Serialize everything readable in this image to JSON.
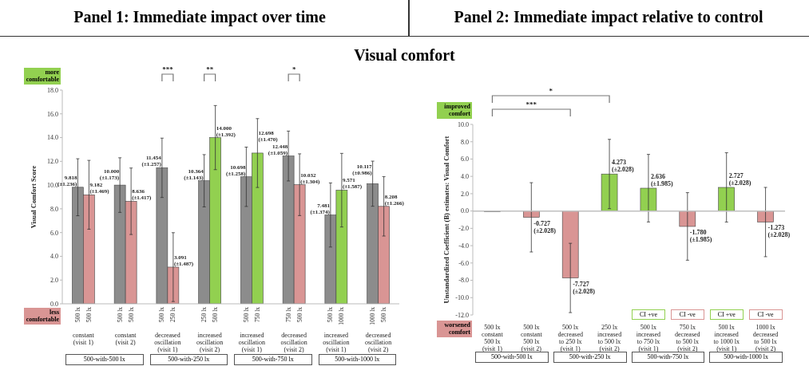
{
  "chart_data": [
    {
      "type": "bar",
      "title": "Panel 1: Immediate impact over time",
      "subtitle": "Visual comfort",
      "ylabel": "Visual Comfort Score",
      "categories": [
        "constant\n(visit 1)",
        "constant\n(visit 2)",
        "decreased\noscillation\n(visit 1)",
        "increased\noscillation\n(visit 2)",
        "increased\noscillation\n(visit 1)",
        "decreased\noscillation\n(visit 2)",
        "increased\noscillation\n(visit 1)",
        "decreased\noscillation\n(visit 2)"
      ],
      "series": [
        {
          "values": [
            9.818,
            10.0,
            11.454,
            10.364,
            10.698,
            12.448,
            7.481,
            10.117
          ],
          "colors": [
            "#8c8c8c",
            "#8c8c8c",
            "#8c8c8c",
            "#8c8c8c",
            "#8c8c8c",
            "#8c8c8c",
            "#8c8c8c",
            "#8c8c8c"
          ],
          "errors": [
            2.4,
            2.3,
            2.5,
            2.2,
            2.5,
            2.1,
            2.7,
            1.9
          ],
          "value_labels": [
            "9.818\n(±1.236)",
            "10.000\n(±1.173)",
            "11.454\n(±1.257)",
            "10.364\n(±1.143)",
            "10.698\n(±1.258)",
            "12.448\n(±1.059)",
            "7.481\n(±1.374)",
            "10.117\n(±0.986)"
          ]
        },
        {
          "values": [
            9.182,
            8.636,
            3.091,
            14.0,
            12.698,
            10.032,
            9.571,
            8.208
          ],
          "colors": [
            "#d99594",
            "#d99594",
            "#d99594",
            "#92d050",
            "#92d050",
            "#d99594",
            "#92d050",
            "#d99594"
          ],
          "errors": [
            2.9,
            2.8,
            2.9,
            2.7,
            2.9,
            2.6,
            3.1,
            2.5
          ],
          "value_labels": [
            "9.182\n(±1.469)",
            "8.636\n(±1.417)",
            "3.091\n(±1.487)",
            "14.000\n(±1.392)",
            "12.698\n(±1.470)",
            "10.032\n(±1.304)",
            "9.571\n(±1.587)",
            "8.208\n(±1.266)"
          ]
        }
      ],
      "ylim": [
        0,
        18
      ],
      "yticks": [
        {
          "value": 0,
          "label": "0.0"
        },
        {
          "value": 2,
          "label": "2.0"
        },
        {
          "value": 4,
          "label": "4.0"
        },
        {
          "value": 6,
          "label": "6.0"
        },
        {
          "value": 8,
          "label": "8.0"
        },
        {
          "value": 10,
          "label": "10.0"
        },
        {
          "value": 12,
          "label": "12.0"
        },
        {
          "value": 14,
          "label": "14.0"
        },
        {
          "value": 16,
          "label": "16.0"
        },
        {
          "value": 18,
          "label": "18.0"
        }
      ],
      "annotations": [
        "more comfortable",
        "less comfortable",
        "500 lx",
        "500 lx",
        "500 lx",
        "500 lx",
        "500 lx",
        "250 lx",
        "250 lx",
        "500 lx",
        "500 lx",
        "750 lx",
        "750 lx",
        "500 lx",
        "500 lx",
        "1000 lx",
        "1000 lx",
        "500 lx",
        "500-with-500 lx",
        "500-with-250 lx",
        "500-with-750 lx",
        "500-with-1000 lx",
        "***",
        "**",
        "*"
      ]
    },
    {
      "type": "bar",
      "title": "Panel 2: Immediate impact relative to control",
      "ylabel": "Unstandardized Coefficient (B) estimates: Visual Comfort",
      "categories": [
        "500 lx\nconstant\n500 lx\n(visit 1)",
        "500 lx\nconstant\n500 lx\n(visit 2)",
        "500 lx\ndecreased\nto 250 lx\n(visit 1)",
        "250 lx\nincreased\nto 500 lx\n(visit 2)",
        "500 lx\nincreased\nto 750 lx\n(visit 1)",
        "750 lx\ndecreased\nto 500 lx\n(visit 2)",
        "500 lx\nincreased\nto 1000 lx\n(visit 1)",
        "1000 lx\ndecreased\nto 500 lx\n(visit 2)"
      ],
      "series": [
        {
          "values": [
            0,
            -0.727,
            -7.727,
            4.273,
            2.636,
            -1.78,
            2.727,
            -1.273
          ],
          "colors": [
            "#8c8c8c",
            "#d99594",
            "#d99594",
            "#92d050",
            "#92d050",
            "#d99594",
            "#92d050",
            "#d99594"
          ],
          "errors": [
            null,
            4.0,
            4.0,
            4.0,
            3.9,
            3.9,
            4.0,
            4.0
          ],
          "value_labels": [
            null,
            "-0.727\n(±2.028)",
            "-7.727\n(±2.028)",
            "4.273\n(±2.028)",
            "2.636\n(±1.985)",
            "-1.780\n(±1.985)",
            "2.727\n(±2.028)",
            "-1.273\n(±2.028)"
          ]
        }
      ],
      "ylim": [
        -12,
        10
      ],
      "yticks": [
        {
          "value": -12,
          "label": "-12.0"
        },
        {
          "value": -10,
          "label": "-10.0"
        },
        {
          "value": -8,
          "label": "-8.0"
        },
        {
          "value": -6,
          "label": "-6.0"
        },
        {
          "value": -4,
          "label": "-4.0"
        },
        {
          "value": -2,
          "label": "-2.0"
        },
        {
          "value": 0,
          "label": "0.0"
        },
        {
          "value": 2,
          "label": "2.0"
        },
        {
          "value": 4,
          "label": "4.0"
        },
        {
          "value": 6,
          "label": "6.0"
        },
        {
          "value": 8,
          "label": "8.0"
        },
        {
          "value": 10,
          "label": "10.0"
        }
      ],
      "ref_lines": [
        {
          "axis": "y",
          "value": 0,
          "color": "#bfbfbf"
        }
      ],
      "annotations": [
        "improved comfort",
        "worsened comfort",
        "CI +ve",
        "CI -ve",
        "CI +ve",
        "CI -ve",
        "500-with-500 lx",
        "500-with-250 lx",
        "500-with-750 lx",
        "500-with-1000 lx",
        "***",
        "*"
      ]
    }
  ]
}
